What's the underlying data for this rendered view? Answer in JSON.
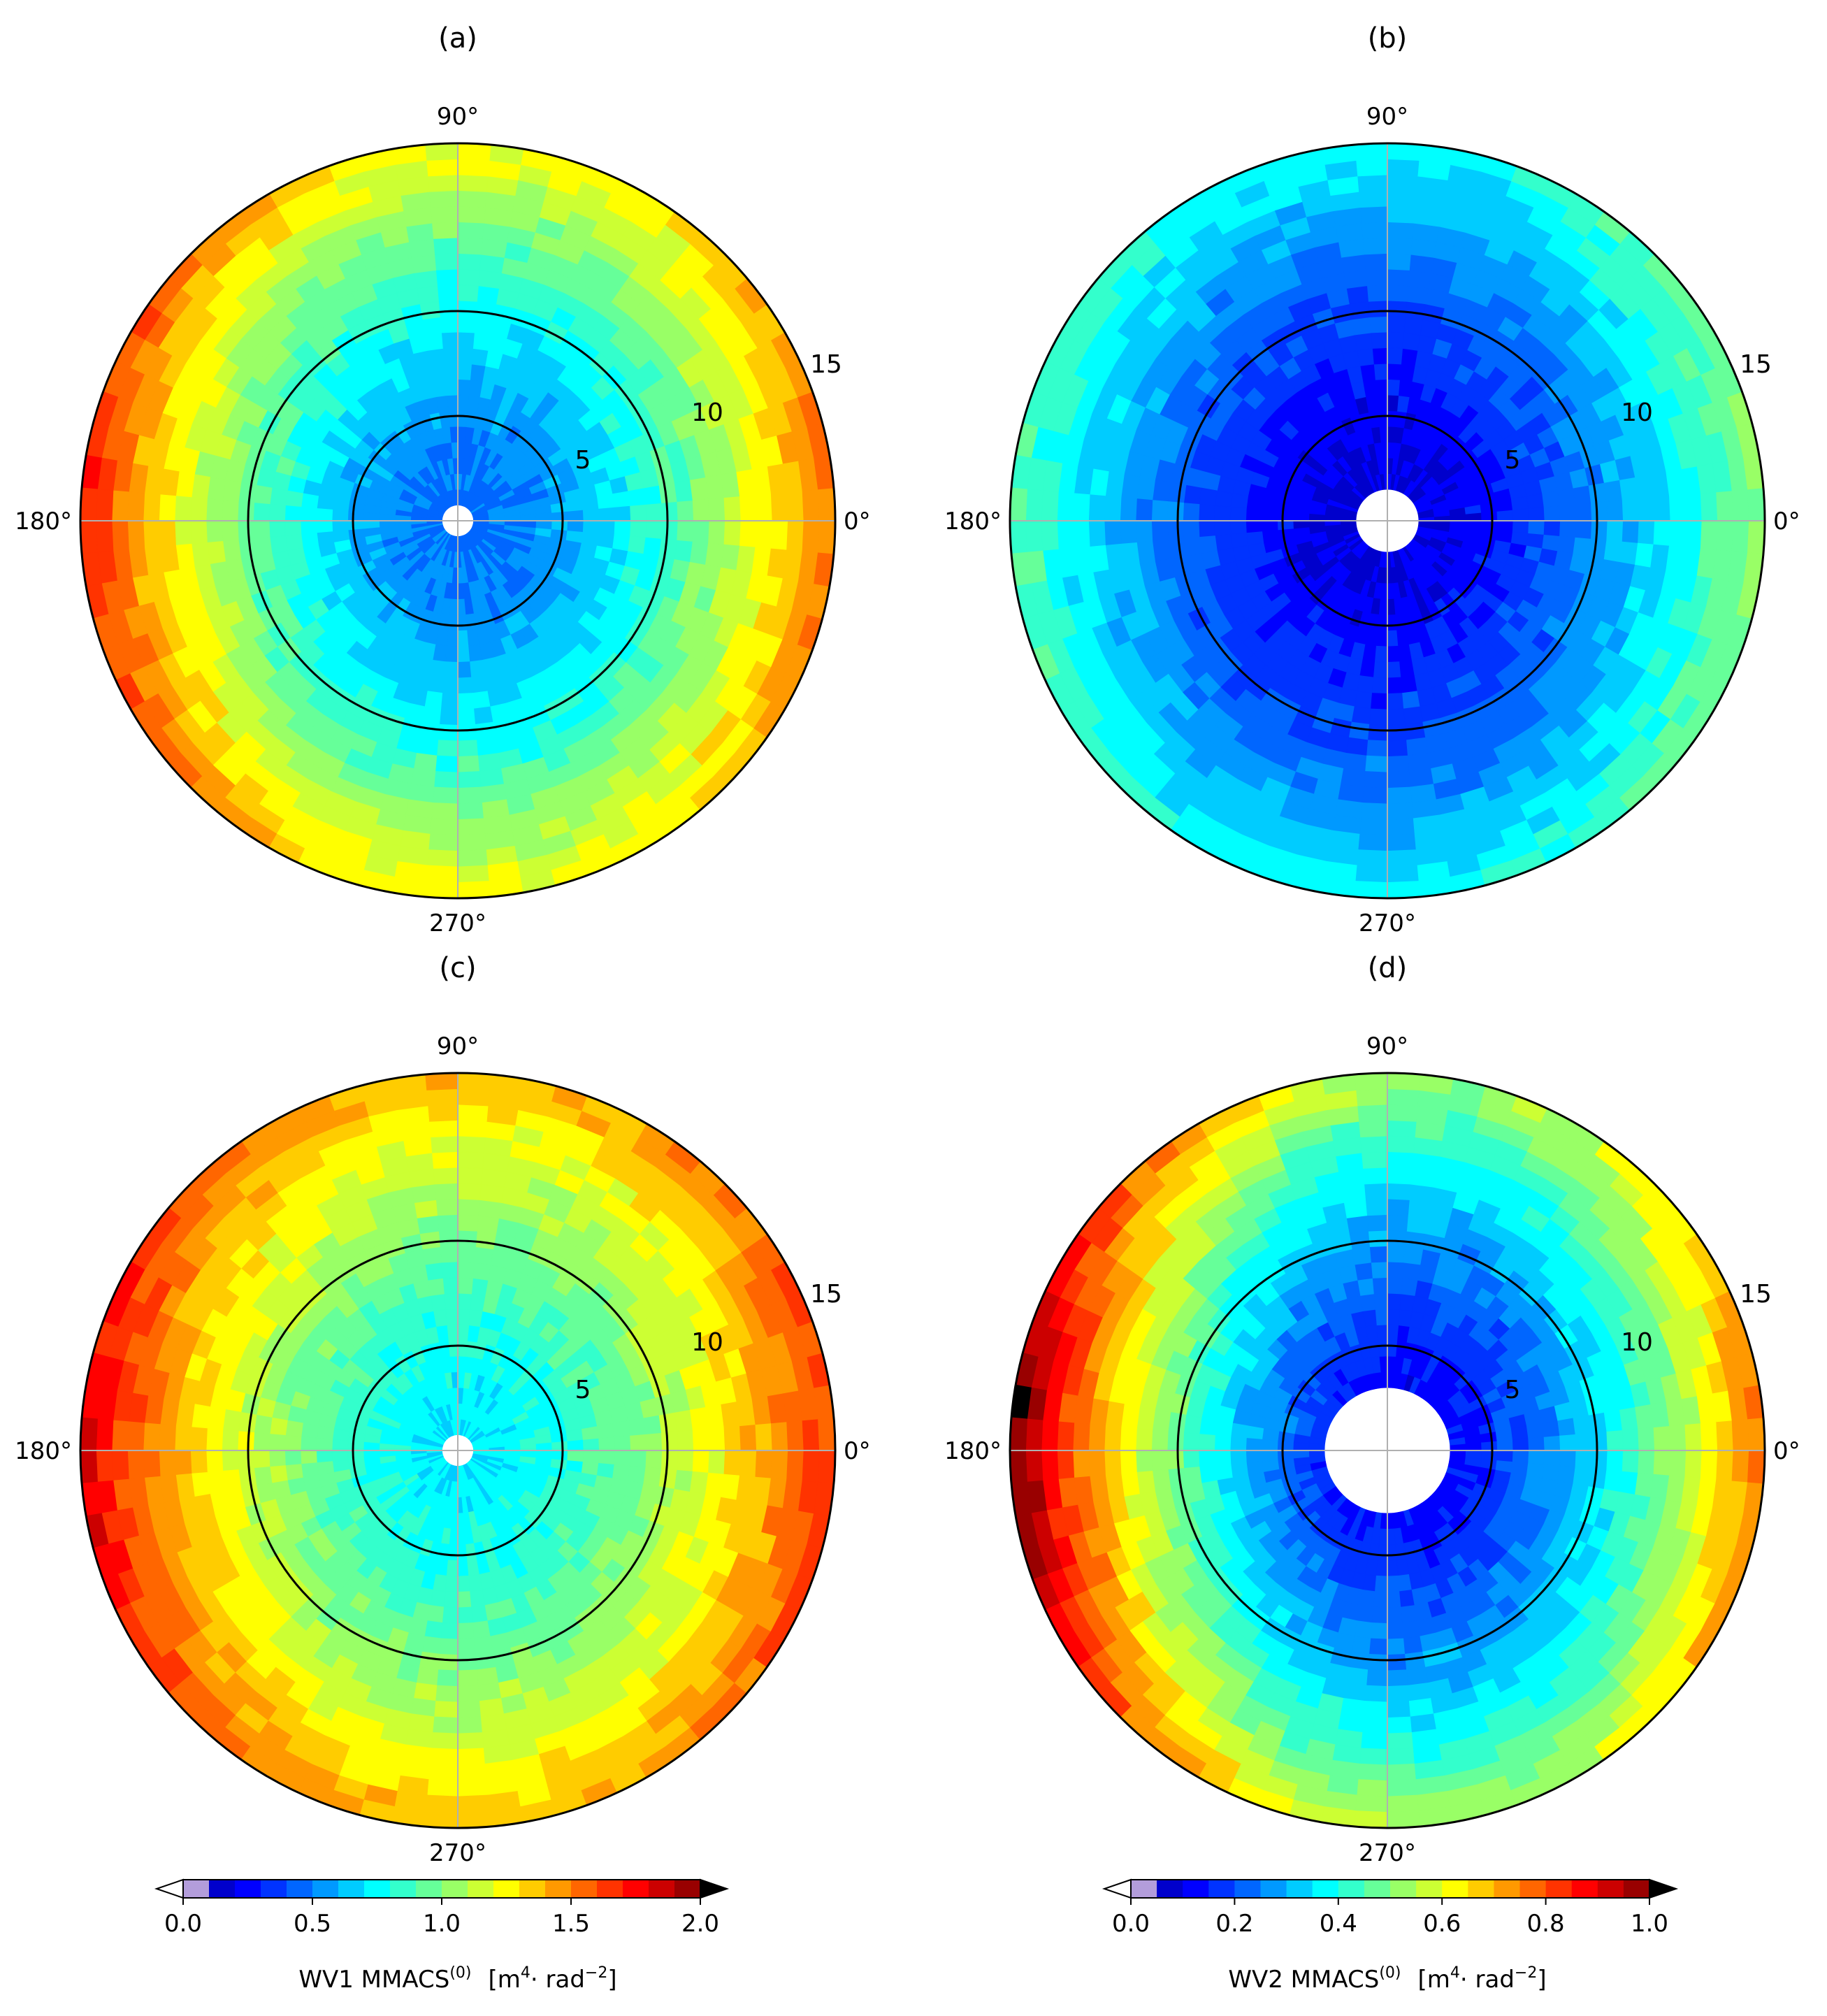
{
  "chart_data": [
    {
      "type": "heatmap",
      "panel": "(a)",
      "projection": "polar",
      "angle_labels": [
        "0°",
        "90°",
        "180°",
        "270°"
      ],
      "radial_ticks": [
        5,
        10,
        15
      ],
      "rlim": [
        0,
        18
      ],
      "colormap": "jet",
      "field": {
        "center_value": 0.45,
        "edge_value_x": 1.65,
        "edge_value_y": 1.25,
        "asymmetry": -0.08,
        "hole_radius": 0.9,
        "noise": 0.06
      },
      "colorbar": {
        "vmin": 0.0,
        "vmax": 2.0,
        "step": 0.1,
        "ticks": [
          "0.0",
          "0.5",
          "1.0",
          "1.5",
          "2.0"
        ],
        "label_main": "WV1  MMACS",
        "label_sup": "(0)",
        "units_pre": "[m",
        "units_sup1": "4",
        "units_mid": "· rad",
        "units_sup2": "−2",
        "units_post": "]"
      }
    },
    {
      "type": "heatmap",
      "panel": "(b)",
      "projection": "polar",
      "angle_labels": [
        "0°",
        "90°",
        "180°",
        "270°"
      ],
      "radial_ticks": [
        5,
        10,
        15
      ],
      "rlim": [
        0,
        18
      ],
      "colormap": "jet",
      "field": {
        "center_value": 0.08,
        "edge_value_x": 0.5,
        "edge_value_y": 0.38,
        "asymmetry": 0.03,
        "hole_radius": 1.3,
        "noise": 0.03
      },
      "colorbar": {
        "vmin": 0.0,
        "vmax": 1.0,
        "step": 0.05,
        "ticks": [
          "0.0",
          "0.2",
          "0.4",
          "0.6",
          "0.8",
          "1.0"
        ],
        "label_main": "WV2  MMACS",
        "label_sup": "(0)",
        "units_pre": "[m",
        "units_sup1": "4",
        "units_mid": "· rad",
        "units_sup2": "−2",
        "units_post": "]"
      }
    },
    {
      "type": "heatmap",
      "panel": "(c)",
      "projection": "polar",
      "angle_labels": [
        "0°",
        "90°",
        "180°",
        "270°"
      ],
      "radial_ticks": [
        5,
        10,
        15
      ],
      "rlim": [
        0,
        18
      ],
      "colormap": "jet",
      "field": {
        "center_value": 0.7,
        "edge_value_x": 1.75,
        "edge_value_y": 1.4,
        "asymmetry": -0.06,
        "hole_radius": 0.9,
        "noise": 0.06
      },
      "colorbar": {
        "vmin": 0.0,
        "vmax": 2.0,
        "step": 0.1,
        "ticks": [
          "0.0",
          "0.5",
          "1.0",
          "1.5",
          "2.0"
        ],
        "label_main": "WV1  MMACS",
        "label_sup": "(0)",
        "units_pre": "[m",
        "units_sup1": "4",
        "units_mid": "· rad",
        "units_sup2": "−2",
        "units_post": "]"
      }
    },
    {
      "type": "heatmap",
      "panel": "(d)",
      "projection": "polar",
      "angle_labels": [
        "0°",
        "90°",
        "180°",
        "270°"
      ],
      "radial_ticks": [
        5,
        10,
        15
      ],
      "rlim": [
        0,
        18
      ],
      "colormap": "jet",
      "field": {
        "center_value": 0.1,
        "edge_value_x": 0.9,
        "edge_value_y": 0.55,
        "asymmetry": -0.12,
        "hole_radius": 3.2,
        "noise": 0.03
      },
      "colorbar": {
        "vmin": 0.0,
        "vmax": 1.0,
        "step": 0.05,
        "ticks": [
          "0.0",
          "0.2",
          "0.4",
          "0.6",
          "0.8",
          "1.0"
        ],
        "label_main": "WV2  MMACS",
        "label_sup": "(0)",
        "units_pre": "[m",
        "units_sup1": "4",
        "units_mid": "· rad",
        "units_sup2": "−2",
        "units_post": "]"
      }
    }
  ],
  "colorbars": [
    {
      "ticks": [
        "0.0",
        "0.5",
        "1.0",
        "1.5",
        "2.0"
      ],
      "vmin": 0.0,
      "vmax": 2.0,
      "label_main": "WV1  MMACS",
      "label_sup": "(0)"
    },
    {
      "ticks": [
        "0.0",
        "0.2",
        "0.4",
        "0.6",
        "0.8",
        "1.0"
      ],
      "vmin": 0.0,
      "vmax": 1.0,
      "label_main": "WV2  MMACS",
      "label_sup": "(0)"
    }
  ],
  "units": {
    "pre": "[m",
    "sup1": "4",
    "mid": "· rad",
    "sup2": "−2",
    "post": "]"
  },
  "colormap_colors": {
    "under": "#ffffff",
    "over": "#000000",
    "lowest": "#b39ddb"
  }
}
